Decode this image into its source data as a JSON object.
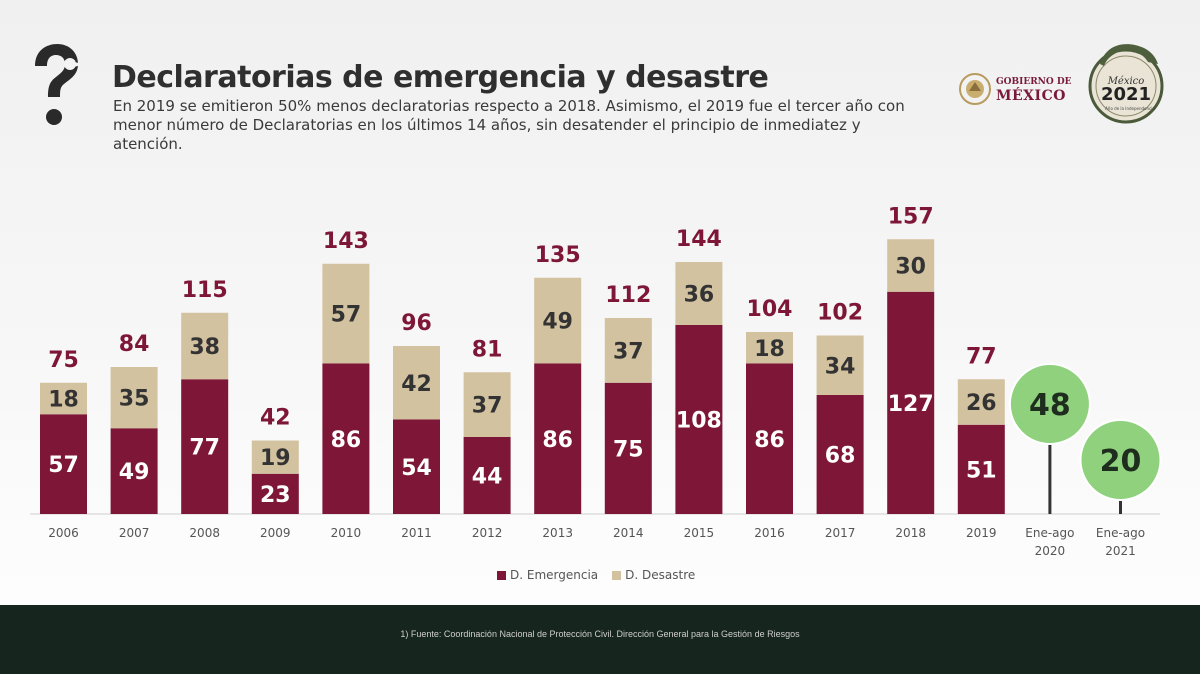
{
  "header": {
    "title": "Declaratorias de emergencia y desastre",
    "subtitle": "En 2019 se emitieron 50% menos declaratorias respecto a 2018. Asimismo, el 2019 fue el tercer año con menor número de Declaratorias en los últimos 14 años, sin desatender el principio de inmediatez y atención."
  },
  "logos": {
    "gobierno_line1": "GOBIERNO DE",
    "gobierno_line2": "MÉXICO",
    "seal_country": "México",
    "seal_year": "2021",
    "seal_caption": "Año de la Independencia"
  },
  "chart_data": {
    "type": "bar",
    "stacked": true,
    "categories": [
      "2006",
      "2007",
      "2008",
      "2009",
      "2010",
      "2011",
      "2012",
      "2013",
      "2014",
      "2015",
      "2016",
      "2017",
      "2018",
      "2019"
    ],
    "series": [
      {
        "name": "D. Emergencia",
        "color": "#7d1637",
        "values": [
          57,
          49,
          77,
          23,
          86,
          54,
          44,
          86,
          75,
          108,
          86,
          68,
          127,
          51
        ]
      },
      {
        "name": "D. Desastre",
        "color": "#d3c2a0",
        "values": [
          18,
          35,
          38,
          19,
          57,
          42,
          37,
          49,
          37,
          36,
          18,
          34,
          30,
          26
        ]
      }
    ],
    "totals": [
      75,
      84,
      115,
      42,
      143,
      96,
      81,
      135,
      112,
      144,
      104,
      102,
      157,
      77
    ],
    "extra_points": [
      {
        "label_line1": "Ene-ago",
        "label_line2": "2020",
        "value": 48,
        "color": "#8fd17d"
      },
      {
        "label_line1": "Ene-ago",
        "label_line2": "2021",
        "value": 20,
        "color": "#8fd17d"
      }
    ],
    "total_label_color": "#7d1637",
    "legend_position": "bottom-center",
    "grid": false
  },
  "footer": {
    "source": "1) Fuente: Coordinación Nacional de Protección Civil. Dirección General para la Gestión de Riesgos"
  }
}
